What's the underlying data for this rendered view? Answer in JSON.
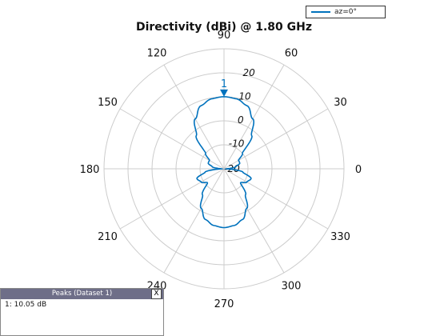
{
  "title": "Directivity (dBi) @ 1.80 GHz",
  "legend": {
    "label": "az=0°"
  },
  "peaks_panel": {
    "title": "Peaks (Dataset 1)",
    "close_label": "X",
    "entry": "1: 10.05 dB"
  },
  "colors": {
    "series": "#0072BD",
    "grid": "#cccccc",
    "text": "#111111"
  },
  "chart_data": {
    "type": "polar",
    "title": "Directivity (dBi) @ 1.80 GHz",
    "angle_unit": "degrees",
    "angle_ticks": [
      90,
      60,
      30,
      0,
      330,
      300,
      270,
      240,
      210,
      180,
      150,
      120
    ],
    "r_ticks": [
      -20,
      -10,
      0,
      10,
      20
    ],
    "r_lim": [
      -20,
      30
    ],
    "grid": true,
    "legend_position": "top-right",
    "peak_marker": {
      "label": "1",
      "angle": 90,
      "value": 10.05
    },
    "series": [
      {
        "name": "az=0°",
        "angles": [
          0,
          10,
          20,
          30,
          40,
          50,
          60,
          70,
          80,
          90,
          100,
          110,
          120,
          130,
          140,
          150,
          160,
          170,
          180,
          190,
          200,
          210,
          220,
          230,
          240,
          250,
          260,
          270,
          280,
          290,
          300,
          310,
          320,
          330,
          340,
          350
        ],
        "values": [
          -19,
          -15,
          -13,
          -13,
          -10,
          -2,
          4,
          8,
          9.6,
          10.05,
          9.6,
          8,
          4,
          -2,
          -10,
          -13,
          -13,
          -15,
          -19,
          -12,
          -8,
          -9,
          -11,
          -6,
          -1,
          2.5,
          4,
          4.5,
          4,
          2.5,
          -1,
          -6,
          -11,
          -9,
          -8,
          -12
        ]
      }
    ]
  }
}
